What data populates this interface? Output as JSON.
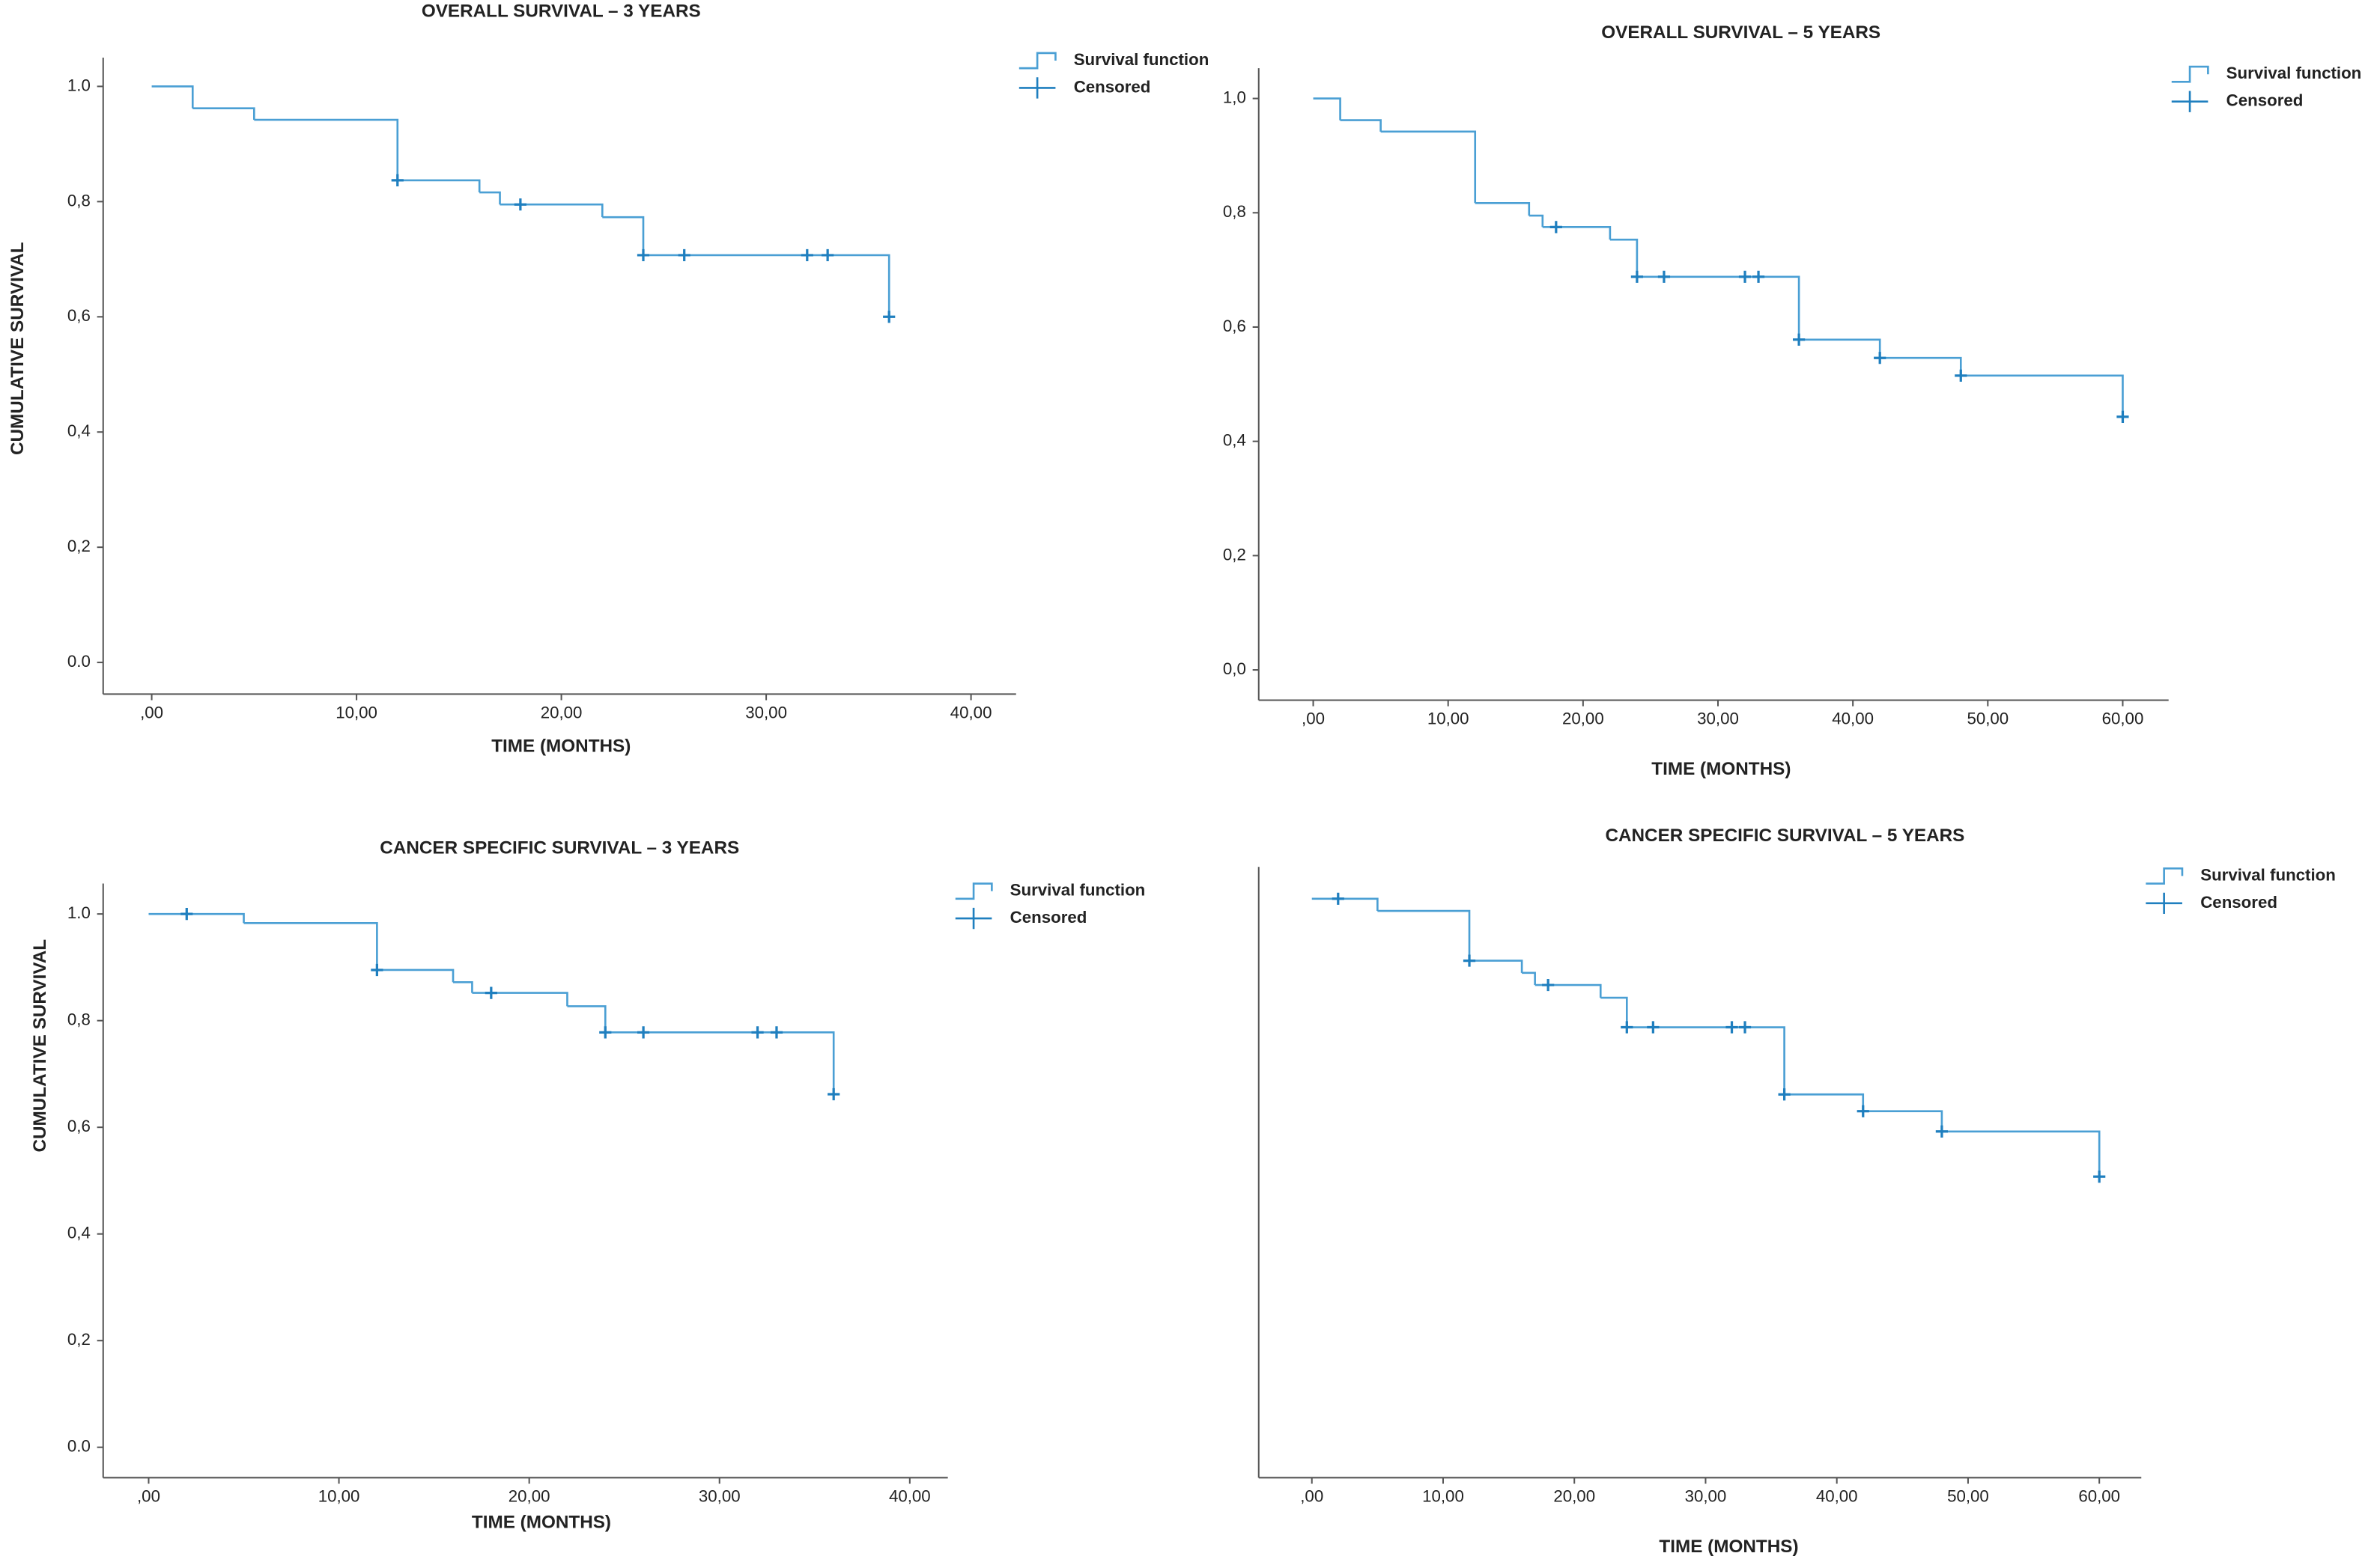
{
  "chart_data": [
    {
      "type": "step",
      "title": "OVERALL SURVIVAL – 3 YEARS",
      "x_label": "TIME (MONTHS)",
      "y_label": "CUMULATIVE SURVIVAL",
      "xlim": [
        -2.37,
        42.2
      ],
      "ylim": [
        -0.055,
        1.05
      ],
      "xticks": [
        {
          "value": 0,
          "label": ",00"
        },
        {
          "value": 10,
          "label": "10,00"
        },
        {
          "value": 20,
          "label": "20,00"
        },
        {
          "value": 30,
          "label": "30,00"
        },
        {
          "value": 40,
          "label": "40,00"
        }
      ],
      "yticks": [
        {
          "value": 0,
          "label": "0.0"
        },
        {
          "value": 0.2,
          "label": "0,2"
        },
        {
          "value": 0.4,
          "label": "0,4"
        },
        {
          "value": 0.6,
          "label": "0,6"
        },
        {
          "value": 0.8,
          "label": "0,8"
        },
        {
          "value": 1,
          "label": "1.0"
        }
      ],
      "series": [
        {
          "name": "Survival function",
          "color": "#4a9fd4",
          "x": [
            0,
            2,
            5,
            12,
            16,
            17,
            22,
            24,
            36
          ],
          "values": [
            1.0,
            0.962,
            0.942,
            0.837,
            0.816,
            0.795,
            0.773,
            0.707,
            0.6
          ]
        },
        {
          "name": "Censored",
          "color": "#1f7fbf",
          "x": [
            12,
            18,
            24,
            26,
            32,
            33,
            36
          ],
          "values": [
            0.837,
            0.795,
            0.707,
            0.707,
            0.707,
            0.707,
            0.6
          ]
        }
      ]
    },
    {
      "type": "step",
      "title": "OVERALL SURVIVAL – 5 YEARS",
      "x_label": "TIME (MONTHS)",
      "xlim": [
        -4.04,
        63.4
      ],
      "ylim": [
        -0.053,
        1.053
      ],
      "xticks": [
        {
          "value": 0,
          "label": ",00"
        },
        {
          "value": 10,
          "label": "10,00"
        },
        {
          "value": 20,
          "label": "20,00"
        },
        {
          "value": 30,
          "label": "30,00"
        },
        {
          "value": 40,
          "label": "40,00"
        },
        {
          "value": 50,
          "label": "50,00"
        },
        {
          "value": 60,
          "label": "60,00"
        }
      ],
      "yticks": [
        {
          "value": 0,
          "label": "0,0"
        },
        {
          "value": 0.2,
          "label": "0,2"
        },
        {
          "value": 0.4,
          "label": "0,4"
        },
        {
          "value": 0.6,
          "label": "0,6"
        },
        {
          "value": 0.8,
          "label": "0,8"
        },
        {
          "value": 1,
          "label": "1,0"
        }
      ],
      "series": [
        {
          "name": "Survival function",
          "color": "#4a9fd4",
          "x": [
            0,
            2,
            5,
            12,
            16,
            17,
            22,
            24,
            36,
            42,
            48,
            60
          ],
          "values": [
            1.0,
            0.962,
            0.942,
            0.817,
            0.795,
            0.775,
            0.753,
            0.688,
            0.578,
            0.546,
            0.515,
            0.443
          ]
        },
        {
          "name": "Censored",
          "color": "#1f7fbf",
          "x": [
            18,
            24,
            26,
            32,
            33,
            36,
            42,
            48,
            60
          ],
          "values": [
            0.775,
            0.688,
            0.688,
            0.688,
            0.688,
            0.578,
            0.546,
            0.515,
            0.443
          ]
        }
      ]
    },
    {
      "type": "step",
      "title": "CANCER SPECIFIC SURVIVAL – 3 YEARS",
      "x_label": "TIME (MONTHS)",
      "y_label": "CUMULATIVE SURVIVAL",
      "xlim": [
        -2.39,
        42.0
      ],
      "ylim": [
        -0.057,
        1.057
      ],
      "xticks": [
        {
          "value": 0,
          "label": ",00"
        },
        {
          "value": 10,
          "label": "10,00"
        },
        {
          "value": 20,
          "label": "20,00"
        },
        {
          "value": 30,
          "label": "30,00"
        },
        {
          "value": 40,
          "label": "40,00"
        }
      ],
      "yticks": [
        {
          "value": 0,
          "label": "0.0"
        },
        {
          "value": 0.2,
          "label": "0,2"
        },
        {
          "value": 0.4,
          "label": "0,4"
        },
        {
          "value": 0.6,
          "label": "0,6"
        },
        {
          "value": 0.8,
          "label": "0,8"
        },
        {
          "value": 1,
          "label": "1.0"
        }
      ],
      "series": [
        {
          "name": "Survival function",
          "color": "#4a9fd4",
          "x": [
            0,
            5,
            12,
            16,
            17,
            22,
            24,
            36
          ],
          "values": [
            1.0,
            0.983,
            0.895,
            0.872,
            0.852,
            0.827,
            0.778,
            0.662
          ]
        },
        {
          "name": "Censored",
          "color": "#1f7fbf",
          "x": [
            2,
            12,
            18,
            24,
            26,
            32,
            33,
            36
          ],
          "values": [
            1.0,
            0.895,
            0.852,
            0.778,
            0.778,
            0.778,
            0.778,
            0.662
          ]
        }
      ]
    },
    {
      "type": "step",
      "title": "CANCER SPECIFIC SURVIVAL – 5 YEARS",
      "x_label": "TIME (MONTHS)",
      "xlim": [
        -4.05,
        63.2
      ],
      "ylim": [
        0,
        1.055
      ],
      "xticks": [
        {
          "value": 0,
          "label": ",00"
        },
        {
          "value": 10,
          "label": "10,00"
        },
        {
          "value": 20,
          "label": "20,00"
        },
        {
          "value": 30,
          "label": "30,00"
        },
        {
          "value": 40,
          "label": "40,00"
        },
        {
          "value": 50,
          "label": "50,00"
        },
        {
          "value": 60,
          "label": "60,00"
        }
      ],
      "series": [
        {
          "name": "Survival function",
          "color": "#4a9fd4",
          "x": [
            0,
            5,
            12,
            16,
            17,
            22,
            24,
            36,
            42,
            48,
            60
          ],
          "values": [
            1.0,
            0.979,
            0.893,
            0.872,
            0.851,
            0.829,
            0.778,
            0.662,
            0.633,
            0.598,
            0.52
          ]
        },
        {
          "name": "Censored",
          "color": "#1f7fbf",
          "x": [
            2,
            12,
            18,
            24,
            26,
            32,
            33,
            36,
            42,
            48,
            60
          ],
          "values": [
            1.0,
            0.893,
            0.851,
            0.778,
            0.778,
            0.778,
            0.778,
            0.662,
            0.633,
            0.598,
            0.52
          ]
        }
      ]
    }
  ]
}
